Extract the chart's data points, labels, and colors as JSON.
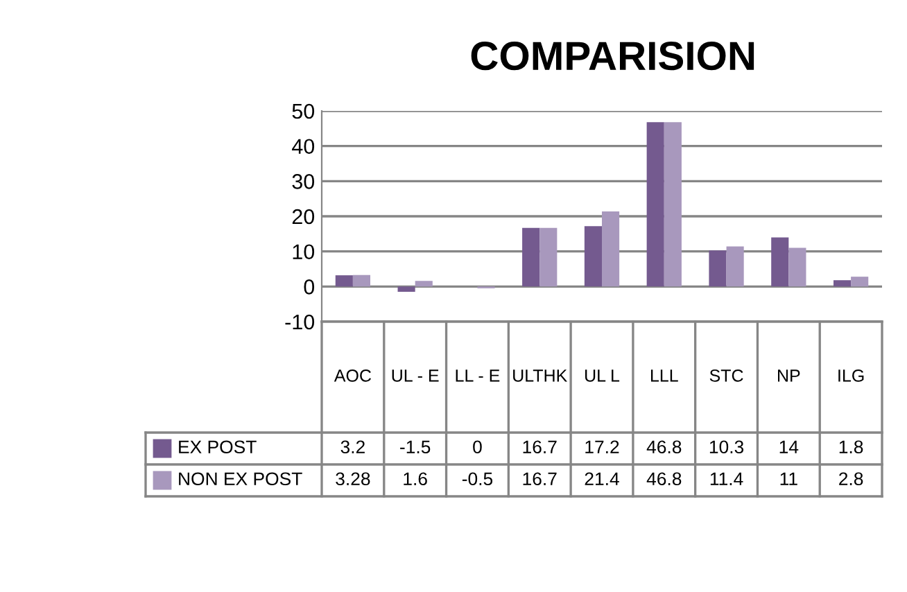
{
  "chart_data": {
    "type": "bar",
    "title": "COMPARISION",
    "categories": [
      "AOC",
      "UL - E",
      "LL - E",
      "ULTHK",
      "UL L",
      "LLL",
      "STC",
      "NP",
      "ILG"
    ],
    "series": [
      {
        "name": "EX POST",
        "color": "#745a8f",
        "values": [
          3.2,
          -1.5,
          0,
          16.7,
          17.2,
          46.8,
          10.3,
          14,
          1.8
        ]
      },
      {
        "name": "NON EX POST",
        "color": "#a898bd",
        "values": [
          3.28,
          1.6,
          -0.5,
          16.7,
          21.4,
          46.8,
          11.4,
          11,
          2.8
        ]
      }
    ],
    "ylim": [
      -10,
      50
    ],
    "yticks": [
      -10,
      0,
      10,
      20,
      30,
      40,
      50
    ],
    "grid": "y",
    "legend": "bottom",
    "data_labels": true
  }
}
